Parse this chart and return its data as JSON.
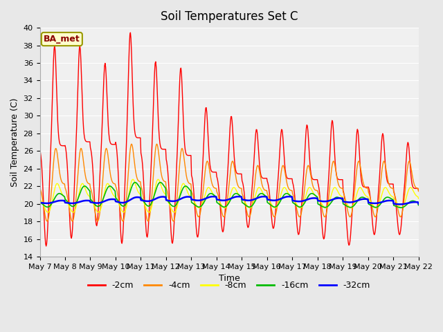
{
  "title": "Soil Temperatures Set C",
  "xlabel": "Time",
  "ylabel": "Soil Temperature (C)",
  "ylim": [
    14,
    40
  ],
  "yticks": [
    14,
    16,
    18,
    20,
    22,
    24,
    26,
    28,
    30,
    32,
    34,
    36,
    38,
    40
  ],
  "background_color": "#e8e8e8",
  "plot_bg_color": "#f0f0f0",
  "legend_label": "BA_met",
  "series_labels": [
    "-2cm",
    "-4cm",
    "-8cm",
    "-16cm",
    "-32cm"
  ],
  "series_colors": [
    "#ff0000",
    "#ff8800",
    "#ffff00",
    "#00bb00",
    "#0000ff"
  ],
  "series_linewidths": [
    1.0,
    1.0,
    1.0,
    1.2,
    1.8
  ],
  "n_days": 15,
  "xticklabels": [
    "May 7",
    "May 8",
    "May 9",
    "May 10",
    "May 11",
    "May 12",
    "May 13",
    "May 14",
    "May 15",
    "May 16",
    "May 17",
    "May 18",
    "May 19",
    "May 20",
    "May 21",
    "May 22"
  ],
  "title_fontsize": 12,
  "axis_fontsize": 9,
  "tick_fontsize": 8,
  "figsize": [
    6.4,
    4.8
  ],
  "dpi": 100
}
